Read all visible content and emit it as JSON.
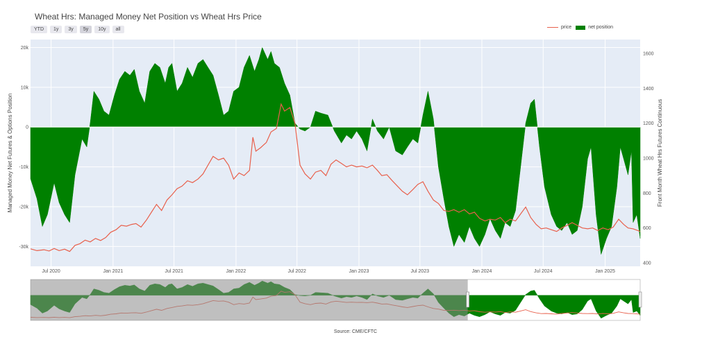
{
  "title": "Wheat Hrs: Managed Money Net Position vs Wheat Hrs Price",
  "source": "Source: CME/CFTC",
  "range_buttons": [
    {
      "label": "YTD",
      "active": false
    },
    {
      "label": "1y",
      "active": false
    },
    {
      "label": "3y",
      "active": false
    },
    {
      "label": "5y",
      "active": true
    },
    {
      "label": "10y",
      "active": false
    },
    {
      "label": "all",
      "active": false
    }
  ],
  "legend": {
    "price": "price",
    "net": "net position"
  },
  "colors": {
    "price": "#e8604c",
    "net": "#008000",
    "plot_bg": "#e5ecf6",
    "grid": "#ffffff",
    "shade": "#8a8a8a"
  },
  "chart_data": {
    "type": "area",
    "x_range": [
      "2020-05-01",
      "2025-04-15"
    ],
    "y_left_title": "Managed Money Net Futures & Options Position",
    "y_left_range": [
      -35000,
      22000
    ],
    "y_left_ticks": [
      {
        "v": 20000,
        "l": "20k"
      },
      {
        "v": 10000,
        "l": "10k"
      },
      {
        "v": 0,
        "l": "0"
      },
      {
        "v": -10000,
        "l": "-10k"
      },
      {
        "v": -20000,
        "l": "-20k"
      },
      {
        "v": -30000,
        "l": "-30k"
      }
    ],
    "y_right_title": "Front Month Wheat Hrs Futures Continuous",
    "y_right_range": [
      380,
      1680
    ],
    "y_right_ticks": [
      400,
      600,
      800,
      1000,
      1200,
      1400,
      1600
    ],
    "x_ticks": [
      {
        "d": "2020-07-01",
        "l": "Jul 2020"
      },
      {
        "d": "2021-01-01",
        "l": "Jan 2021"
      },
      {
        "d": "2021-07-01",
        "l": "Jul 2021"
      },
      {
        "d": "2022-01-01",
        "l": "Jan 2022"
      },
      {
        "d": "2022-07-01",
        "l": "Jul 2022"
      },
      {
        "d": "2023-01-01",
        "l": "Jan 2023"
      },
      {
        "d": "2023-07-01",
        "l": "Jul 2023"
      },
      {
        "d": "2024-01-01",
        "l": "Jan 2024"
      },
      {
        "d": "2024-07-01",
        "l": "Jul 2024"
      },
      {
        "d": "2025-01-01",
        "l": "Jan 2025"
      }
    ],
    "series": [
      {
        "name": "net position",
        "axis": "left",
        "points": [
          [
            "2020-05-01",
            -13000
          ],
          [
            "2020-05-20",
            -18000
          ],
          [
            "2020-06-05",
            -25000
          ],
          [
            "2020-06-20",
            -22000
          ],
          [
            "2020-07-10",
            -14000
          ],
          [
            "2020-07-25",
            -19000
          ],
          [
            "2020-08-10",
            -22000
          ],
          [
            "2020-08-25",
            -24000
          ],
          [
            "2020-09-10",
            -12000
          ],
          [
            "2020-10-01",
            -3000
          ],
          [
            "2020-10-15",
            -5000
          ],
          [
            "2020-10-25",
            1000
          ],
          [
            "2020-11-05",
            9000
          ],
          [
            "2020-11-20",
            7000
          ],
          [
            "2020-12-05",
            4000
          ],
          [
            "2020-12-20",
            3000
          ],
          [
            "2021-01-05",
            8000
          ],
          [
            "2021-01-20",
            12000
          ],
          [
            "2021-02-05",
            14000
          ],
          [
            "2021-02-20",
            13000
          ],
          [
            "2021-03-05",
            14500
          ],
          [
            "2021-03-20",
            9000
          ],
          [
            "2021-04-05",
            6000
          ],
          [
            "2021-04-20",
            14000
          ],
          [
            "2021-05-05",
            16000
          ],
          [
            "2021-05-20",
            15000
          ],
          [
            "2021-06-05",
            11000
          ],
          [
            "2021-06-15",
            15000
          ],
          [
            "2021-06-25",
            16000
          ],
          [
            "2021-07-10",
            9000
          ],
          [
            "2021-07-25",
            11000
          ],
          [
            "2021-08-10",
            15000
          ],
          [
            "2021-08-25",
            12500
          ],
          [
            "2021-09-10",
            16000
          ],
          [
            "2021-09-25",
            17000
          ],
          [
            "2021-10-10",
            15000
          ],
          [
            "2021-10-25",
            13000
          ],
          [
            "2021-11-10",
            8000
          ],
          [
            "2021-11-25",
            3000
          ],
          [
            "2021-12-10",
            4000
          ],
          [
            "2021-12-25",
            9000
          ],
          [
            "2022-01-10",
            10000
          ],
          [
            "2022-01-25",
            15000
          ],
          [
            "2022-02-10",
            18000
          ],
          [
            "2022-02-25",
            14000
          ],
          [
            "2022-03-10",
            17000
          ],
          [
            "2022-03-20",
            20000
          ],
          [
            "2022-04-05",
            17000
          ],
          [
            "2022-04-15",
            19000
          ],
          [
            "2022-04-25",
            16000
          ],
          [
            "2022-05-10",
            15000
          ],
          [
            "2022-05-25",
            11000
          ],
          [
            "2022-06-10",
            8000
          ],
          [
            "2022-06-25",
            1000
          ],
          [
            "2022-07-10",
            -500
          ],
          [
            "2022-07-25",
            -1000
          ],
          [
            "2022-08-10",
            0
          ],
          [
            "2022-08-25",
            4000
          ],
          [
            "2022-09-10",
            3500
          ],
          [
            "2022-10-01",
            3000
          ],
          [
            "2022-10-20",
            -1000
          ],
          [
            "2022-11-10",
            -4000
          ],
          [
            "2022-11-25",
            -2000
          ],
          [
            "2022-12-10",
            -3000
          ],
          [
            "2022-12-25",
            -1000
          ],
          [
            "2023-01-10",
            -3000
          ],
          [
            "2023-01-25",
            -6000
          ],
          [
            "2023-02-10",
            2000
          ],
          [
            "2023-02-25",
            -1000
          ],
          [
            "2023-03-15",
            -3000
          ],
          [
            "2023-04-01",
            0
          ],
          [
            "2023-04-20",
            -6000
          ],
          [
            "2023-05-10",
            -7000
          ],
          [
            "2023-05-25",
            -5000
          ],
          [
            "2023-06-10",
            -3000
          ],
          [
            "2023-06-25",
            -4000
          ],
          [
            "2023-07-10",
            3000
          ],
          [
            "2023-07-25",
            9000
          ],
          [
            "2023-08-10",
            2000
          ],
          [
            "2023-08-25",
            -10000
          ],
          [
            "2023-09-10",
            -18000
          ],
          [
            "2023-09-25",
            -25000
          ],
          [
            "2023-10-10",
            -30000
          ],
          [
            "2023-10-25",
            -27000
          ],
          [
            "2023-11-10",
            -29000
          ],
          [
            "2023-11-25",
            -25000
          ],
          [
            "2023-12-10",
            -28000
          ],
          [
            "2023-12-25",
            -30000
          ],
          [
            "2024-01-10",
            -27000
          ],
          [
            "2024-01-25",
            -23000
          ],
          [
            "2024-02-10",
            -26000
          ],
          [
            "2024-02-25",
            -28000
          ],
          [
            "2024-03-10",
            -24000
          ],
          [
            "2024-03-25",
            -25000
          ],
          [
            "2024-04-10",
            -21000
          ],
          [
            "2024-04-25",
            -10000
          ],
          [
            "2024-05-10",
            1000
          ],
          [
            "2024-05-25",
            6000
          ],
          [
            "2024-06-05",
            7000
          ],
          [
            "2024-06-20",
            -5000
          ],
          [
            "2024-07-05",
            -15000
          ],
          [
            "2024-07-25",
            -22000
          ],
          [
            "2024-08-10",
            -25000
          ],
          [
            "2024-08-25",
            -26000
          ],
          [
            "2024-09-10",
            -24000
          ],
          [
            "2024-09-25",
            -27000
          ],
          [
            "2024-10-10",
            -26000
          ],
          [
            "2024-10-25",
            -20000
          ],
          [
            "2024-11-10",
            -8000
          ],
          [
            "2024-11-20",
            -5000
          ],
          [
            "2024-12-05",
            -22000
          ],
          [
            "2024-12-20",
            -32000
          ],
          [
            "2025-01-05",
            -28000
          ],
          [
            "2025-01-20",
            -25000
          ],
          [
            "2025-02-05",
            -15000
          ],
          [
            "2025-02-15",
            -5000
          ],
          [
            "2025-02-25",
            -8000
          ],
          [
            "2025-03-10",
            -12000
          ],
          [
            "2025-03-20",
            -6000
          ],
          [
            "2025-03-25",
            -24000
          ],
          [
            "2025-04-05",
            -22000
          ],
          [
            "2025-04-15",
            -28000
          ]
        ]
      },
      {
        "name": "price",
        "axis": "right",
        "points": [
          [
            "2020-05-01",
            480
          ],
          [
            "2020-05-20",
            470
          ],
          [
            "2020-06-10",
            475
          ],
          [
            "2020-06-25",
            468
          ],
          [
            "2020-07-10",
            482
          ],
          [
            "2020-07-25",
            470
          ],
          [
            "2020-08-10",
            478
          ],
          [
            "2020-08-25",
            465
          ],
          [
            "2020-09-10",
            500
          ],
          [
            "2020-09-25",
            510
          ],
          [
            "2020-10-10",
            530
          ],
          [
            "2020-10-25",
            520
          ],
          [
            "2020-11-10",
            540
          ],
          [
            "2020-11-25",
            528
          ],
          [
            "2020-12-10",
            545
          ],
          [
            "2020-12-25",
            575
          ],
          [
            "2021-01-10",
            590
          ],
          [
            "2021-01-25",
            615
          ],
          [
            "2021-02-10",
            610
          ],
          [
            "2021-02-25",
            620
          ],
          [
            "2021-03-10",
            625
          ],
          [
            "2021-03-25",
            605
          ],
          [
            "2021-04-10",
            645
          ],
          [
            "2021-04-25",
            690
          ],
          [
            "2021-05-10",
            735
          ],
          [
            "2021-05-25",
            700
          ],
          [
            "2021-06-10",
            760
          ],
          [
            "2021-06-25",
            790
          ],
          [
            "2021-07-10",
            825
          ],
          [
            "2021-07-25",
            840
          ],
          [
            "2021-08-10",
            870
          ],
          [
            "2021-08-25",
            860
          ],
          [
            "2021-09-10",
            880
          ],
          [
            "2021-09-25",
            910
          ],
          [
            "2021-10-10",
            960
          ],
          [
            "2021-10-25",
            1010
          ],
          [
            "2021-11-10",
            990
          ],
          [
            "2021-11-25",
            1000
          ],
          [
            "2021-12-10",
            960
          ],
          [
            "2021-12-25",
            880
          ],
          [
            "2022-01-10",
            915
          ],
          [
            "2022-01-25",
            900
          ],
          [
            "2022-02-10",
            930
          ],
          [
            "2022-02-20",
            1120
          ],
          [
            "2022-03-01",
            1040
          ],
          [
            "2022-03-15",
            1060
          ],
          [
            "2022-04-01",
            1090
          ],
          [
            "2022-04-15",
            1150
          ],
          [
            "2022-05-01",
            1170
          ],
          [
            "2022-05-15",
            1310
          ],
          [
            "2022-05-25",
            1270
          ],
          [
            "2022-06-10",
            1290
          ],
          [
            "2022-06-25",
            1200
          ],
          [
            "2022-07-10",
            960
          ],
          [
            "2022-07-25",
            910
          ],
          [
            "2022-08-10",
            880
          ],
          [
            "2022-08-25",
            920
          ],
          [
            "2022-09-10",
            930
          ],
          [
            "2022-09-25",
            900
          ],
          [
            "2022-10-10",
            965
          ],
          [
            "2022-10-25",
            990
          ],
          [
            "2022-11-10",
            970
          ],
          [
            "2022-11-25",
            950
          ],
          [
            "2022-12-10",
            960
          ],
          [
            "2022-12-25",
            950
          ],
          [
            "2023-01-10",
            955
          ],
          [
            "2023-01-25",
            945
          ],
          [
            "2023-02-10",
            960
          ],
          [
            "2023-02-25",
            930
          ],
          [
            "2023-03-10",
            900
          ],
          [
            "2023-03-25",
            905
          ],
          [
            "2023-04-10",
            870
          ],
          [
            "2023-04-25",
            840
          ],
          [
            "2023-05-10",
            810
          ],
          [
            "2023-05-25",
            790
          ],
          [
            "2023-06-10",
            820
          ],
          [
            "2023-06-25",
            850
          ],
          [
            "2023-07-10",
            865
          ],
          [
            "2023-07-25",
            810
          ],
          [
            "2023-08-10",
            760
          ],
          [
            "2023-08-25",
            740
          ],
          [
            "2023-09-10",
            700
          ],
          [
            "2023-09-25",
            695
          ],
          [
            "2023-10-10",
            705
          ],
          [
            "2023-10-25",
            690
          ],
          [
            "2023-11-10",
            705
          ],
          [
            "2023-11-25",
            680
          ],
          [
            "2023-12-10",
            690
          ],
          [
            "2023-12-25",
            655
          ],
          [
            "2024-01-10",
            640
          ],
          [
            "2024-01-25",
            650
          ],
          [
            "2024-02-10",
            645
          ],
          [
            "2024-02-25",
            660
          ],
          [
            "2024-03-10",
            630
          ],
          [
            "2024-03-25",
            650
          ],
          [
            "2024-04-10",
            640
          ],
          [
            "2024-04-25",
            680
          ],
          [
            "2024-05-10",
            720
          ],
          [
            "2024-05-25",
            660
          ],
          [
            "2024-06-10",
            620
          ],
          [
            "2024-06-25",
            595
          ],
          [
            "2024-07-10",
            600
          ],
          [
            "2024-07-25",
            590
          ],
          [
            "2024-08-10",
            580
          ],
          [
            "2024-08-25",
            600
          ],
          [
            "2024-09-10",
            615
          ],
          [
            "2024-09-25",
            630
          ],
          [
            "2024-10-10",
            615
          ],
          [
            "2024-10-25",
            600
          ],
          [
            "2024-11-10",
            595
          ],
          [
            "2024-11-25",
            600
          ],
          [
            "2024-12-10",
            585
          ],
          [
            "2024-12-25",
            600
          ],
          [
            "2025-01-10",
            590
          ],
          [
            "2025-01-25",
            605
          ],
          [
            "2025-02-10",
            650
          ],
          [
            "2025-02-25",
            620
          ],
          [
            "2025-03-10",
            600
          ],
          [
            "2025-03-25",
            595
          ],
          [
            "2025-04-15",
            580
          ]
        ]
      }
    ],
    "range_slider": {
      "selected_from": "2023-11-20",
      "selected_to": "2025-04-15"
    },
    "grid": true,
    "legend_position": "top-right"
  }
}
